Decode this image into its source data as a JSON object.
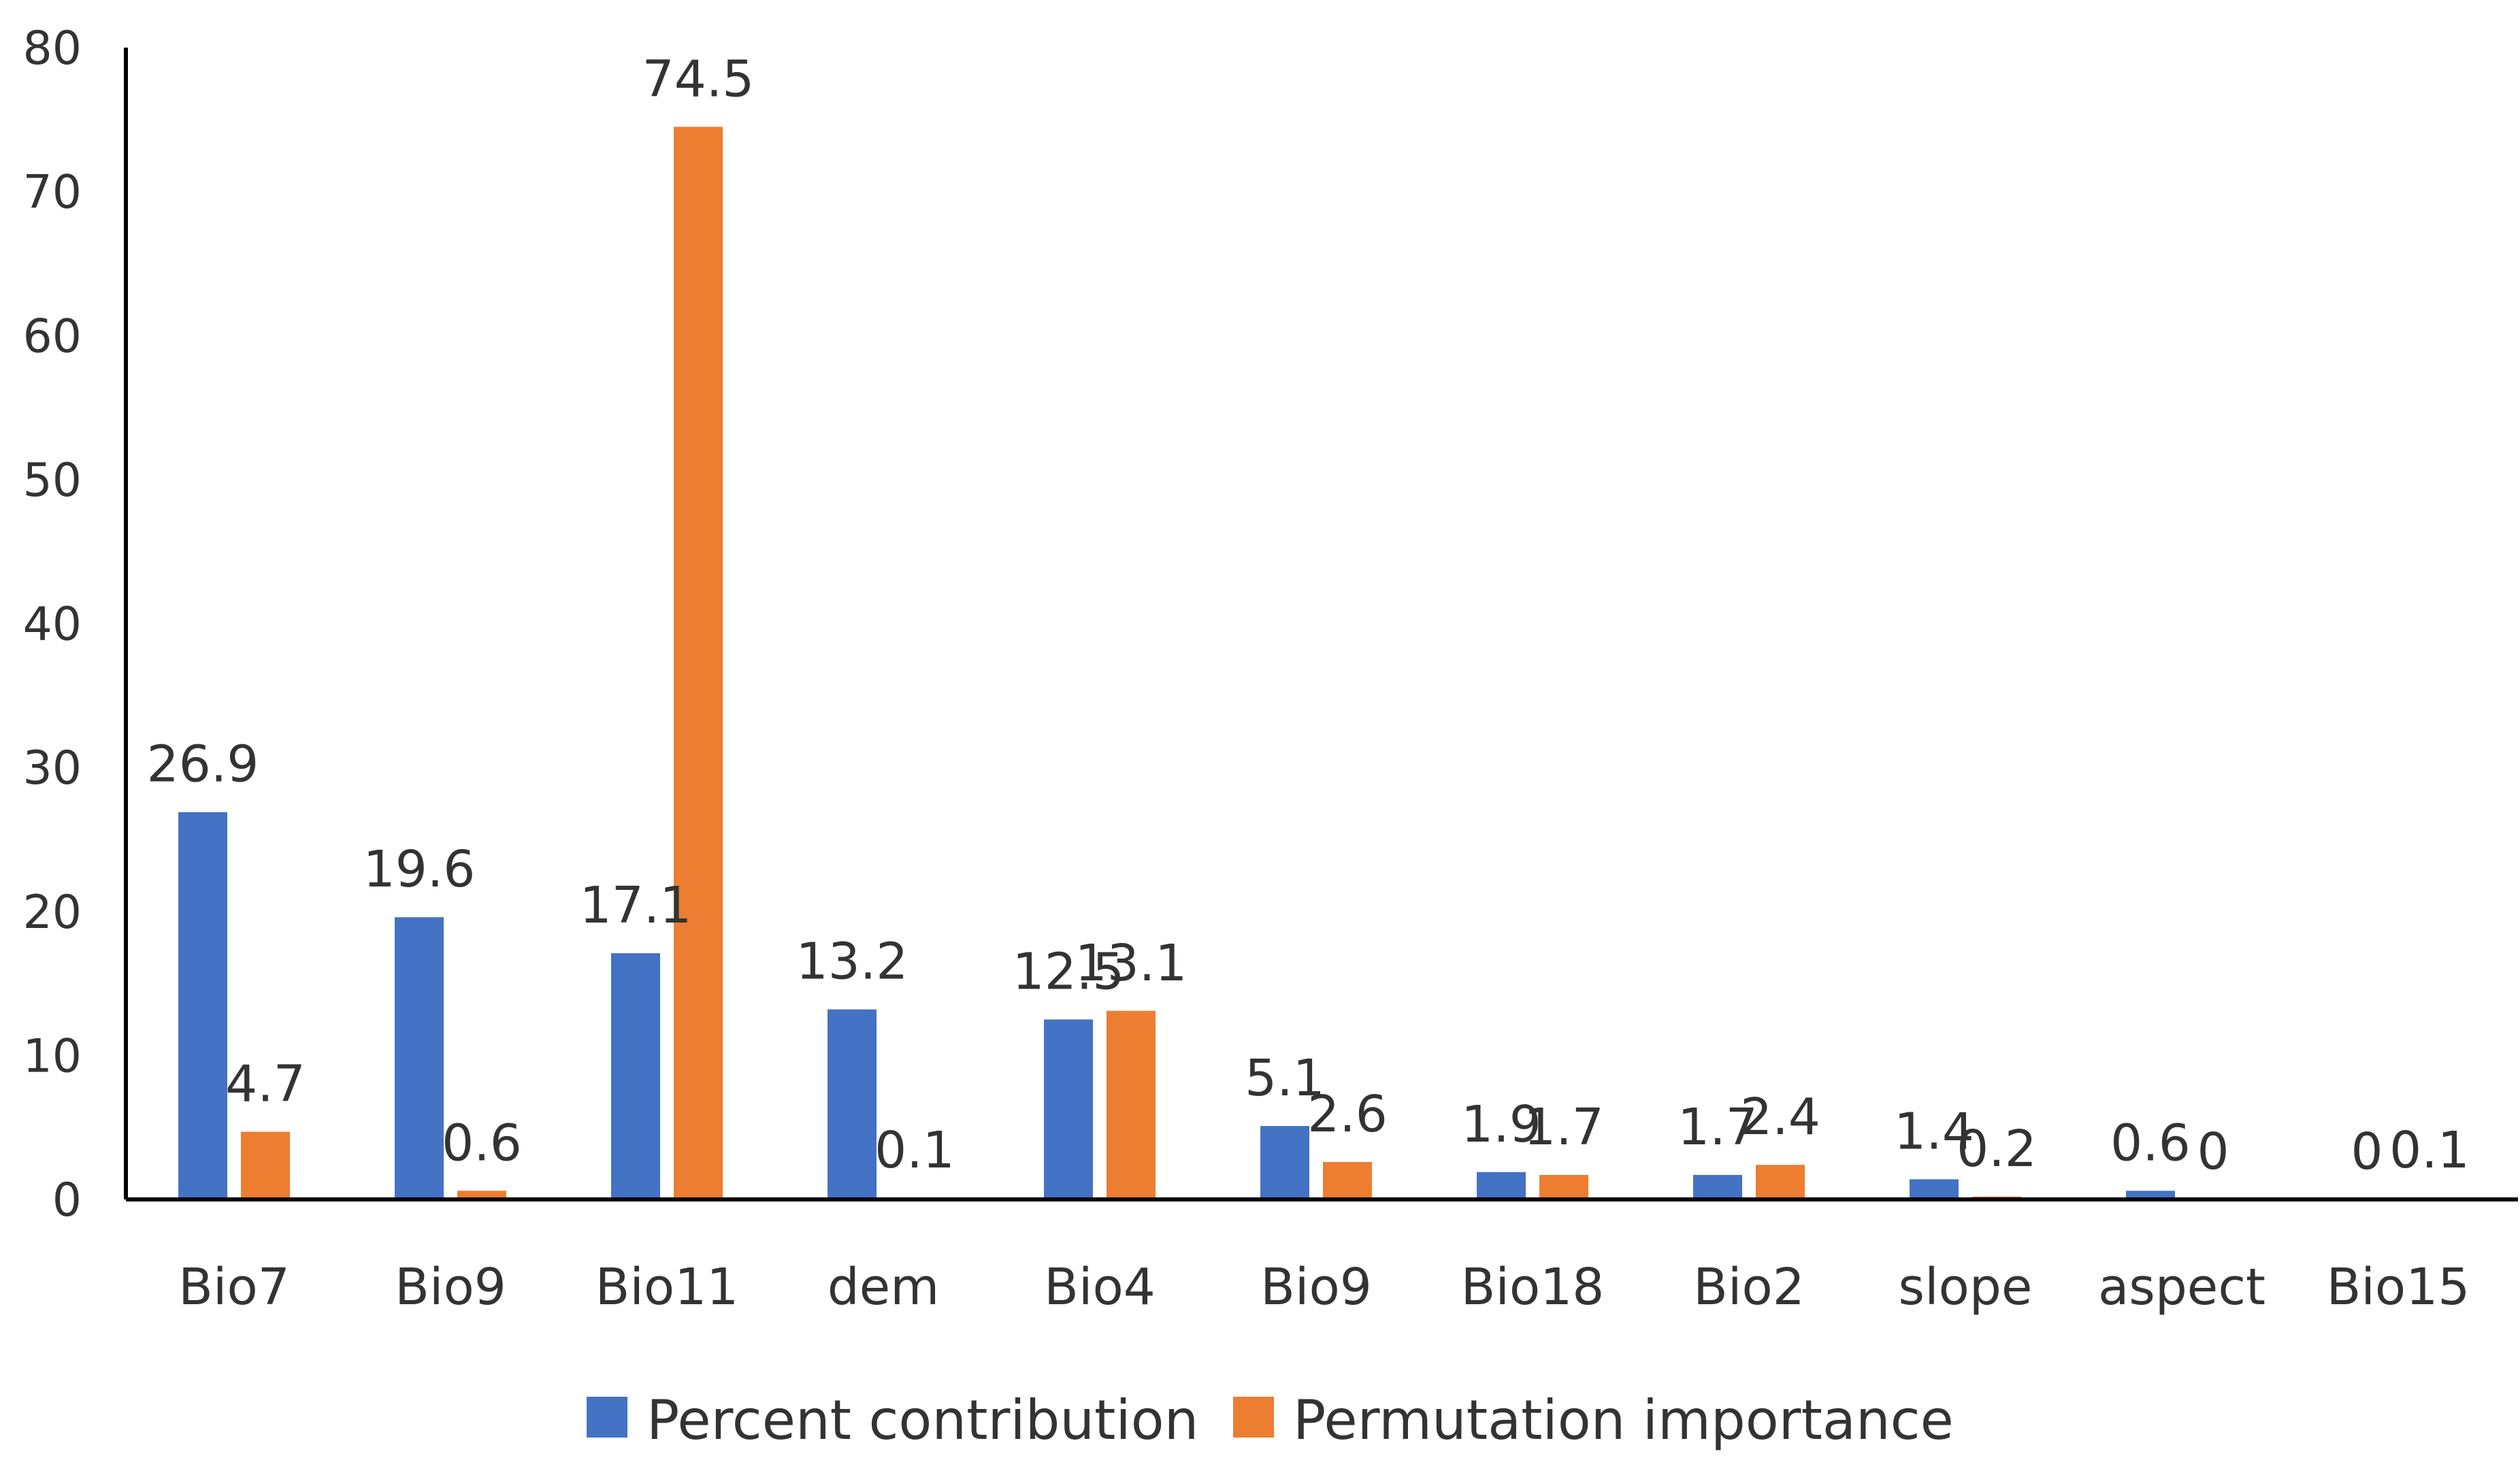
{
  "chart_data": {
    "type": "bar",
    "title": "",
    "xlabel": "",
    "ylabel": "",
    "ylim": [
      0,
      80
    ],
    "yticks": [
      0,
      10,
      20,
      30,
      40,
      50,
      60,
      70,
      80
    ],
    "grid": false,
    "legend_position": "bottom",
    "categories": [
      "Bio7",
      "Bio9",
      "Bio11",
      "dem",
      "Bio4",
      "Bio9",
      "Bio18",
      "Bio2",
      "slope",
      "aspect",
      "Bio15"
    ],
    "series": [
      {
        "name": "Percent contribution",
        "color": "#4472C4",
        "values": [
          26.9,
          19.6,
          17.1,
          13.2,
          12.5,
          5.1,
          1.9,
          1.7,
          1.4,
          0.6,
          0
        ],
        "labels": [
          "26.9",
          "19.6",
          "17.1",
          "13.2",
          "12.5",
          "5.1",
          "1.9",
          "1.7",
          "1.4",
          "0.6",
          "0"
        ]
      },
      {
        "name": "Permutation importance",
        "color": "#ED7D31",
        "values": [
          4.7,
          0.6,
          74.5,
          0.1,
          13.1,
          2.6,
          1.7,
          2.4,
          0.2,
          0,
          0.1
        ],
        "labels": [
          "4.7",
          "0.6",
          "74.5",
          "0.1",
          "13.1",
          "2.6",
          "1.7",
          "2.4",
          "0.2",
          "0",
          "0.1"
        ]
      }
    ]
  }
}
